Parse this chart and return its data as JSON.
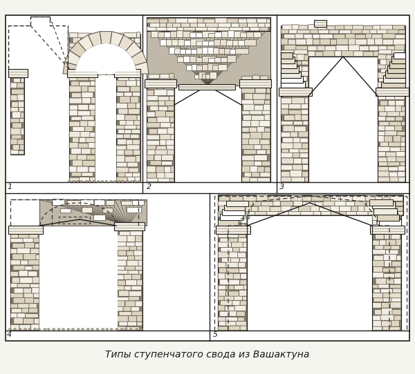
{
  "title": "Типы ступенчатого свода из Вашактуна",
  "title_fontsize": 10,
  "title_style": "italic",
  "bg_color": "#f5f5f0",
  "line_color": "#1a1a1a",
  "dashed_color": "#333333",
  "stone_fill": "#d8d0c0",
  "stone_dark": "#b0a890",
  "hatch_color": "#444444",
  "labels": [
    "1",
    "2",
    "3",
    "4",
    "5"
  ],
  "fig_width": 6.0,
  "fig_height": 5.42
}
